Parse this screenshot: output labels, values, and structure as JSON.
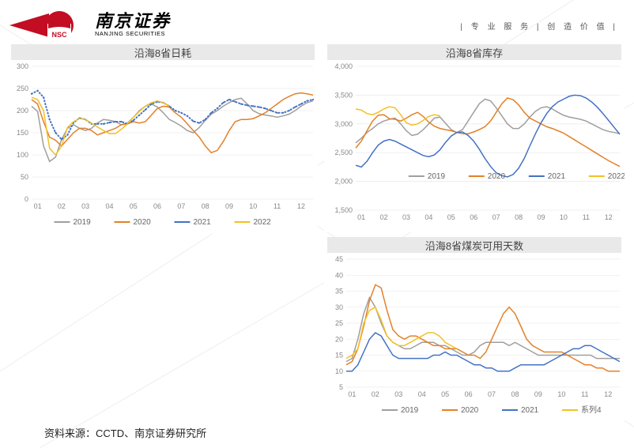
{
  "header": {
    "logo_nsc": "NSC",
    "logo_cn": "南京证券",
    "logo_en": "NANJING SECURITIES",
    "slogan": "| 专 业 服 务 | 创 造 价 值 |"
  },
  "source": "资料来源：CCTD、南京证券研究所",
  "months": [
    "01",
    "02",
    "03",
    "04",
    "05",
    "06",
    "07",
    "08",
    "09",
    "10",
    "11",
    "12"
  ],
  "chart1": {
    "title": "沿海8省日耗",
    "ylim": [
      0,
      300
    ],
    "ytick_step": 50,
    "xlabels": [
      "01",
      "02",
      "03",
      "04",
      "05",
      "06",
      "07",
      "08",
      "09",
      "10",
      "11",
      "12"
    ],
    "background_color": "#ffffff",
    "grid_color": "#e5e5e5",
    "title_bg": "#e9e9e9",
    "axis_fontsize": 9,
    "title_fontsize": 13,
    "line_width": 1.5,
    "marker_2021": "dot",
    "legend_pos": "bottom-left",
    "series": {
      "2019": {
        "color": "#a09f9d",
        "label": "2019",
        "data": [
          210,
          198,
          120,
          85,
          95,
          135,
          160,
          168,
          160,
          155,
          160,
          172,
          180,
          178,
          175,
          168,
          172,
          185,
          200,
          210,
          215,
          208,
          195,
          180,
          173,
          165,
          155,
          150,
          162,
          178,
          192,
          200,
          210,
          218,
          225,
          228,
          215,
          200,
          193,
          190,
          188,
          185,
          188,
          192,
          200,
          210,
          218,
          222
        ]
      },
      "2020": {
        "color": "#e38128",
        "label": "2020",
        "data": [
          225,
          215,
          175,
          140,
          133,
          120,
          135,
          150,
          160,
          160,
          155,
          145,
          150,
          155,
          160,
          168,
          170,
          175,
          172,
          175,
          190,
          205,
          210,
          208,
          195,
          185,
          170,
          155,
          140,
          120,
          105,
          110,
          130,
          155,
          175,
          180,
          180,
          182,
          188,
          195,
          205,
          215,
          225,
          232,
          238,
          240,
          238,
          235
        ]
      },
      "2021": {
        "color": "#4472c4",
        "label": "2021",
        "data": [
          238,
          245,
          230,
          180,
          150,
          135,
          145,
          173,
          183,
          180,
          170,
          170,
          170,
          173,
          175,
          175,
          170,
          178,
          190,
          202,
          215,
          220,
          218,
          210,
          200,
          195,
          188,
          176,
          172,
          180,
          195,
          205,
          218,
          225,
          220,
          215,
          212,
          210,
          208,
          205,
          200,
          195,
          195,
          200,
          208,
          215,
          222,
          225
        ]
      },
      "2022": {
        "color": "#f2c029",
        "label": "2022",
        "data": [
          230,
          225,
          200,
          115,
          100,
          120,
          162,
          175,
          182,
          180,
          172,
          163,
          155,
          148,
          148,
          158,
          170,
          185,
          198,
          210,
          218,
          222,
          218,
          210
        ]
      }
    }
  },
  "chart2": {
    "title": "沿海8省库存",
    "ylim": [
      1500,
      4000
    ],
    "ytick_step": 500,
    "xlabels": [
      "01",
      "02",
      "03",
      "04",
      "05",
      "06",
      "07",
      "08",
      "09",
      "10",
      "11",
      "12"
    ],
    "background_color": "#ffffff",
    "grid_color": "#e5e5e5",
    "title_bg": "#e9e9e9",
    "axis_fontsize": 9,
    "title_fontsize": 13,
    "line_width": 1.5,
    "legend_pos": "center",
    "series": {
      "2019": {
        "color": "#a09f9d",
        "label": "2019",
        "data": [
          2670,
          2750,
          2850,
          2920,
          3000,
          3050,
          3080,
          3100,
          3000,
          2880,
          2800,
          2820,
          2900,
          3000,
          3100,
          3120,
          3010,
          2900,
          2850,
          2900,
          3050,
          3200,
          3350,
          3430,
          3400,
          3280,
          3140,
          3000,
          2920,
          2920,
          3000,
          3120,
          3220,
          3280,
          3300,
          3260,
          3200,
          3150,
          3120,
          3100,
          3080,
          3050,
          3000,
          2950,
          2900,
          2870,
          2850,
          2830
        ]
      },
      "2020": {
        "color": "#e38128",
        "label": "2020",
        "data": [
          2580,
          2700,
          2880,
          3050,
          3150,
          3160,
          3090,
          3080,
          3050,
          3100,
          3160,
          3200,
          3130,
          3030,
          2960,
          2920,
          2900,
          2880,
          2850,
          2830,
          2830,
          2860,
          2900,
          2950,
          3050,
          3200,
          3350,
          3450,
          3420,
          3330,
          3200,
          3100,
          3050,
          3000,
          2950,
          2920,
          2880,
          2840,
          2780,
          2720,
          2660,
          2600,
          2540,
          2480,
          2420,
          2360,
          2310,
          2260
        ]
      },
      "2021": {
        "color": "#4472c4",
        "label": "2021",
        "data": [
          2280,
          2250,
          2350,
          2500,
          2630,
          2700,
          2730,
          2700,
          2650,
          2600,
          2550,
          2500,
          2450,
          2430,
          2460,
          2550,
          2680,
          2790,
          2850,
          2860,
          2800,
          2700,
          2560,
          2400,
          2260,
          2150,
          2100,
          2080,
          2120,
          2230,
          2400,
          2620,
          2830,
          3020,
          3180,
          3300,
          3380,
          3430,
          3480,
          3500,
          3490,
          3450,
          3380,
          3290,
          3180,
          3060,
          2940,
          2820
        ]
      },
      "2022": {
        "color": "#f2c029",
        "label": "2022",
        "data": [
          3260,
          3240,
          3180,
          3160,
          3200,
          3260,
          3300,
          3280,
          3160,
          3020,
          2980,
          3000,
          3060,
          3130,
          3160,
          3140
        ]
      }
    }
  },
  "chart3": {
    "title": "沿海8省煤炭可用天数",
    "ylim": [
      5,
      45
    ],
    "ytick_step": 5,
    "xlabels": [
      "01",
      "02",
      "03",
      "04",
      "05",
      "06",
      "07",
      "08",
      "09",
      "10",
      "11",
      "12"
    ],
    "background_color": "#ffffff",
    "grid_color": "#e5e5e5",
    "title_bg": "#e9e9e9",
    "axis_fontsize": 9,
    "title_fontsize": 13,
    "line_width": 1.5,
    "legend_pos": "bottom-center",
    "series": {
      "2019": {
        "color": "#a09f9d",
        "label": "2019",
        "data": [
          13,
          14,
          20,
          28,
          33,
          30,
          25,
          21,
          19,
          18,
          17,
          17,
          18,
          19,
          19,
          19,
          18,
          18,
          17,
          16,
          15,
          15,
          16,
          18,
          19,
          19,
          19,
          19,
          18,
          19,
          18,
          17,
          16,
          15,
          15,
          15,
          15,
          15,
          15,
          15,
          15,
          15,
          15,
          14,
          14,
          14,
          14,
          14
        ]
      },
      "2020": {
        "color": "#e38128",
        "label": "2020",
        "data": [
          12,
          13,
          17,
          24,
          32,
          37,
          36,
          29,
          23,
          21,
          20,
          21,
          21,
          20,
          19,
          18,
          18,
          17,
          17,
          17,
          16,
          15,
          15,
          14,
          16,
          20,
          24,
          28,
          30,
          28,
          24,
          20,
          18,
          17,
          16,
          16,
          16,
          16,
          15,
          14,
          13,
          12,
          12,
          11,
          11,
          10,
          10,
          10
        ]
      },
      "2021": {
        "color": "#4472c4",
        "label": "2021",
        "data": [
          10,
          10,
          12,
          16,
          20,
          22,
          21,
          18,
          15,
          14,
          14,
          14,
          14,
          14,
          14,
          15,
          15,
          16,
          15,
          15,
          14,
          13,
          12,
          12,
          11,
          11,
          10,
          10,
          10,
          11,
          12,
          12,
          12,
          12,
          12,
          13,
          14,
          15,
          16,
          17,
          17,
          18,
          18,
          17,
          16,
          15,
          14,
          13
        ]
      },
      "2022": {
        "color": "#f2c029",
        "label": "系列4",
        "data": [
          14,
          15,
          17,
          25,
          29,
          30,
          26,
          21,
          19,
          18,
          18,
          19,
          20,
          21,
          22,
          22,
          21,
          19,
          18,
          17
        ]
      }
    }
  }
}
